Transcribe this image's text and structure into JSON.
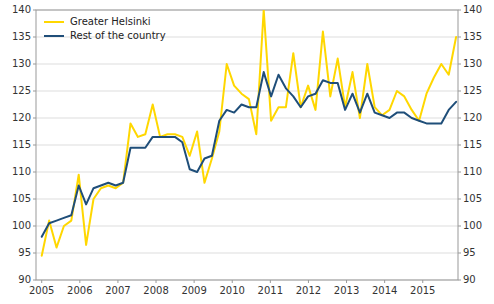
{
  "chart_data": {
    "type": "line",
    "x": [
      2005,
      2005.1941964285713,
      2005.388392857143,
      2005.5825892857142,
      2005.7767857142858,
      2005.970982142857,
      2006.1651785714287,
      2006.359375,
      2006.5535714285713,
      2006.747767857143,
      2006.9419642857142,
      2007.1361607142858,
      2007.330357142857,
      2007.5245535714287,
      2007.71875,
      2007.9129464285713,
      2008.107142857143,
      2008.3013392857142,
      2008.4955357142858,
      2008.689732142857,
      2008.8839285714287,
      2009.078125,
      2009.2723214285713,
      2009.466517857143,
      2009.6607142857142,
      2009.8549107142858,
      2010.049107142857,
      2010.2433035714287,
      2010.4375,
      2010.6316964285713,
      2010.825892857143,
      2011.0200892857142,
      2011.2142857142858,
      2011.408482142857,
      2011.6026785714287,
      2011.796875,
      2011.9910714285713,
      2012.185267857143,
      2012.3794642857142,
      2012.5736607142858,
      2012.767857142857,
      2012.9620535714287,
      2013.15625,
      2013.3504464285713,
      2013.544642857143,
      2013.7388392857142,
      2013.9330357142858,
      2014.127232142857,
      2014.3214285714287,
      2014.515625,
      2014.7098214285713,
      2014.904017857143,
      2015.0982142857142,
      2015.2924107142858,
      2015.486607142857,
      2015.6808035714287,
      2015.875
    ],
    "series": [
      {
        "name": "Greater Helsinki",
        "color": "#FFD700",
        "values": [
          94.5,
          101.0,
          96.0,
          100.0,
          101.0,
          109.5,
          96.5,
          105.0,
          107.0,
          107.5,
          107.0,
          108.0,
          119.0,
          116.5,
          117.0,
          122.5,
          116.5,
          117.0,
          117.0,
          116.5,
          113.0,
          117.5,
          108.0,
          112.5,
          117.5,
          130.0,
          126.0,
          124.5,
          123.5,
          117.0,
          140.0,
          119.5,
          122.0,
          122.0,
          132.0,
          122.0,
          126.0,
          121.5,
          136.0,
          124.0,
          131.0,
          122.0,
          128.5,
          120.0,
          130.0,
          122.0,
          120.5,
          121.5,
          125.0,
          124.0,
          121.5,
          119.5,
          124.5,
          127.5,
          130.0,
          128.0,
          135.0
        ]
      },
      {
        "name": "Rest of the country",
        "color": "#1F4E79",
        "values": [
          98.0,
          100.5,
          101.0,
          101.5,
          102.0,
          107.5,
          104.0,
          107.0,
          107.5,
          108.0,
          107.5,
          108.0,
          114.5,
          114.5,
          114.5,
          116.5,
          116.5,
          116.5,
          116.5,
          115.5,
          110.5,
          110.0,
          112.5,
          113.0,
          119.5,
          121.5,
          121.0,
          122.5,
          122.0,
          122.0,
          128.5,
          124.0,
          128.0,
          125.5,
          124.0,
          122.0,
          124.0,
          124.5,
          127.0,
          126.5,
          126.5,
          121.5,
          124.5,
          121.0,
          124.5,
          121.0,
          120.5,
          120.0,
          121.0,
          121.0,
          120.0,
          119.5,
          119.0,
          119.0,
          119.0,
          121.5,
          123.0
        ]
      }
    ],
    "xlim": [
      2004.85,
      2015.925
    ],
    "xticks": [
      2005,
      2006,
      2007,
      2008,
      2009,
      2010,
      2011,
      2012,
      2013,
      2014,
      2015
    ],
    "ylim": [
      90,
      140
    ],
    "yticks": [
      90,
      95,
      100,
      105,
      110,
      115,
      120,
      125,
      130,
      135,
      140
    ],
    "y2lim": [
      90,
      140
    ],
    "y2ticks": [
      90,
      95,
      100,
      105,
      110,
      115,
      120,
      125,
      130,
      135,
      140
    ],
    "grid": true,
    "legend": "upper left"
  }
}
